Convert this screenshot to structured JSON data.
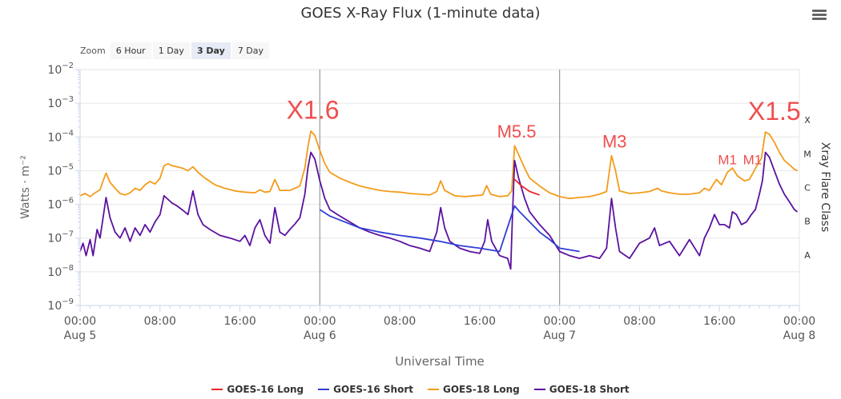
{
  "title": "GOES X-Ray Flux (1-minute data)",
  "menu": {
    "icon": "hamburger-menu-icon"
  },
  "zoom": {
    "label": "Zoom",
    "buttons": [
      {
        "label": "6 Hour",
        "active": false
      },
      {
        "label": "1 Day",
        "active": false
      },
      {
        "label": "3 Day",
        "active": true
      },
      {
        "label": "7 Day",
        "active": false
      }
    ]
  },
  "chart_data": {
    "type": "line",
    "title": "GOES X-Ray Flux (1-minute data)",
    "xlabel": "Universal Time",
    "ylabel": "Watts · m⁻²",
    "ylabel_right": "Xray Flare Class",
    "y_scale": "log",
    "ylim": [
      1e-09,
      0.01
    ],
    "xlim_hours": [
      0,
      72
    ],
    "x_ticks": [
      {
        "h": 0,
        "label": "00:00",
        "sub": "Aug 5"
      },
      {
        "h": 8,
        "label": "08:00",
        "sub": ""
      },
      {
        "h": 16,
        "label": "16:00",
        "sub": ""
      },
      {
        "h": 24,
        "label": "00:00",
        "sub": "Aug 6"
      },
      {
        "h": 32,
        "label": "08:00",
        "sub": ""
      },
      {
        "h": 40,
        "label": "16:00",
        "sub": ""
      },
      {
        "h": 48,
        "label": "00:00",
        "sub": "Aug 7"
      },
      {
        "h": 56,
        "label": "08:00",
        "sub": ""
      },
      {
        "h": 64,
        "label": "16:00",
        "sub": ""
      },
      {
        "h": 72,
        "label": "00:00",
        "sub": "Aug 8"
      }
    ],
    "y_ticks": [
      {
        "exp": -9,
        "label": "10",
        "sup": "−9"
      },
      {
        "exp": -8,
        "label": "10",
        "sup": "−8"
      },
      {
        "exp": -7,
        "label": "10",
        "sup": "−7"
      },
      {
        "exp": -6,
        "label": "10",
        "sup": "−6"
      },
      {
        "exp": -5,
        "label": "10",
        "sup": "−5"
      },
      {
        "exp": -4,
        "label": "10",
        "sup": "−4"
      },
      {
        "exp": -3,
        "label": "10",
        "sup": "−3"
      },
      {
        "exp": -2,
        "label": "10",
        "sup": "−2"
      }
    ],
    "flare_classes": [
      {
        "label": "X",
        "exp": -3.5
      },
      {
        "label": "M",
        "exp": -4.5
      },
      {
        "label": "C",
        "exp": -5.5
      },
      {
        "label": "B",
        "exp": -6.5
      },
      {
        "label": "A",
        "exp": -7.5
      }
    ],
    "day_lines_hours": [
      24,
      48
    ],
    "annotations": [
      {
        "text": "X1.6",
        "h": 23.3,
        "flux": 0.00016,
        "size": "large"
      },
      {
        "text": "M5.5",
        "h": 43.7,
        "flux": 5.5e-05,
        "size": "medium"
      },
      {
        "text": "M3",
        "h": 53.5,
        "flux": 2.8e-05,
        "size": "medium"
      },
      {
        "text": "M1",
        "h": 64.8,
        "flux": 1e-05,
        "size": "small"
      },
      {
        "text": "M1",
        "h": 67.3,
        "flux": 1e-05,
        "size": "small"
      },
      {
        "text": "X1.5",
        "h": 69.5,
        "flux": 0.00015,
        "size": "large"
      }
    ],
    "series": [
      {
        "name": "GOES-16 Long",
        "color": "#e8262b",
        "points": [
          [
            43.5,
            5.5e-06
          ],
          [
            44.2,
            3.5e-06
          ],
          [
            45,
            2.4e-06
          ],
          [
            46,
            1.9e-06
          ]
        ]
      },
      {
        "name": "GOES-16 Short",
        "color": "#2f3fd4",
        "points": [
          [
            24,
            7e-07
          ],
          [
            25,
            4.5e-07
          ],
          [
            26.5,
            3e-07
          ],
          [
            28,
            2e-07
          ],
          [
            30,
            1.5e-07
          ],
          [
            32,
            1.2e-07
          ],
          [
            34,
            1e-07
          ],
          [
            36,
            8e-08
          ],
          [
            38,
            6e-08
          ],
          [
            40,
            5e-08
          ],
          [
            42,
            4e-08
          ],
          [
            43.5,
            9e-07
          ],
          [
            44,
            6e-07
          ],
          [
            45,
            3e-07
          ],
          [
            46,
            1.5e-07
          ],
          [
            47,
            9e-08
          ],
          [
            48,
            5e-08
          ],
          [
            50,
            4e-08
          ]
        ]
      },
      {
        "name": "GOES-18 Long",
        "color": "#f39c1b",
        "points": [
          [
            0,
            1.8e-06
          ],
          [
            0.5,
            2.1e-06
          ],
          [
            1,
            1.7e-06
          ],
          [
            1.5,
            2.2e-06
          ],
          [
            2,
            2.7e-06
          ],
          [
            2.3,
            5e-06
          ],
          [
            2.6,
            8.5e-06
          ],
          [
            3,
            4.5e-06
          ],
          [
            3.5,
            3e-06
          ],
          [
            4,
            2.1e-06
          ],
          [
            4.5,
            1.9e-06
          ],
          [
            5,
            2.2e-06
          ],
          [
            5.5,
            3e-06
          ],
          [
            6,
            2.6e-06
          ],
          [
            6.5,
            3.8e-06
          ],
          [
            7,
            4.8e-06
          ],
          [
            7.5,
            4e-06
          ],
          [
            8,
            6e-06
          ],
          [
            8.4,
            1.4e-05
          ],
          [
            8.8,
            1.6e-05
          ],
          [
            9.2,
            1.4e-05
          ],
          [
            9.7,
            1.3e-05
          ],
          [
            10.2,
            1.2e-05
          ],
          [
            10.8,
            1e-05
          ],
          [
            11.3,
            1.3e-05
          ],
          [
            11.8,
            9e-06
          ],
          [
            12.5,
            6e-06
          ],
          [
            13.5,
            3.8e-06
          ],
          [
            14.5,
            3e-06
          ],
          [
            15.5,
            2.5e-06
          ],
          [
            16.5,
            2.3e-06
          ],
          [
            17.5,
            2.2e-06
          ],
          [
            18,
            2.7e-06
          ],
          [
            18.5,
            2.3e-06
          ],
          [
            19,
            2.4e-06
          ],
          [
            19.5,
            5.5e-06
          ],
          [
            20,
            2.6e-06
          ],
          [
            21,
            2.6e-06
          ],
          [
            21.5,
            3e-06
          ],
          [
            22,
            3.5e-06
          ],
          [
            22.5,
            1.2e-05
          ],
          [
            22.8,
            5e-05
          ],
          [
            23.1,
            0.00015
          ],
          [
            23.5,
            0.00011
          ],
          [
            24,
            4e-05
          ],
          [
            24.5,
            1.6e-05
          ],
          [
            25,
            9e-06
          ],
          [
            26,
            6e-06
          ],
          [
            27,
            4.5e-06
          ],
          [
            28,
            3.5e-06
          ],
          [
            29,
            3e-06
          ],
          [
            30,
            2.6e-06
          ],
          [
            31,
            2.4e-06
          ],
          [
            32,
            2.3e-06
          ],
          [
            33,
            2.1e-06
          ],
          [
            34,
            2e-06
          ],
          [
            35,
            1.9e-06
          ],
          [
            35.7,
            2.4e-06
          ],
          [
            36.1,
            5e-06
          ],
          [
            36.5,
            2.6e-06
          ],
          [
            37.5,
            1.8e-06
          ],
          [
            38.5,
            1.7e-06
          ],
          [
            39.5,
            1.8e-06
          ],
          [
            40.3,
            1.9e-06
          ],
          [
            40.7,
            3.6e-06
          ],
          [
            41.1,
            2e-06
          ],
          [
            42,
            1.7e-06
          ],
          [
            42.8,
            1.8e-06
          ],
          [
            43.2,
            2.5e-06
          ],
          [
            43.5,
            5.5e-05
          ],
          [
            43.9,
            3e-05
          ],
          [
            44.5,
            1.2e-05
          ],
          [
            45,
            6e-06
          ],
          [
            46,
            3.5e-06
          ],
          [
            47,
            2.2e-06
          ],
          [
            48,
            1.7e-06
          ],
          [
            49,
            1.5e-06
          ],
          [
            50,
            1.6e-06
          ],
          [
            51,
            1.7e-06
          ],
          [
            52,
            2e-06
          ],
          [
            52.7,
            2.4e-06
          ],
          [
            53.2,
            2.8e-05
          ],
          [
            53.6,
            1e-05
          ],
          [
            54,
            2.5e-06
          ],
          [
            55,
            2.1e-06
          ],
          [
            56,
            2.2e-06
          ],
          [
            57,
            2.4e-06
          ],
          [
            57.8,
            3e-06
          ],
          [
            58.2,
            2.5e-06
          ],
          [
            59,
            2.2e-06
          ],
          [
            60,
            2e-06
          ],
          [
            61,
            2e-06
          ],
          [
            62,
            2.2e-06
          ],
          [
            62.5,
            3e-06
          ],
          [
            63,
            2.6e-06
          ],
          [
            63.7,
            5.5e-06
          ],
          [
            64.2,
            3.8e-06
          ],
          [
            64.8,
            9e-06
          ],
          [
            65.3,
            1.2e-05
          ],
          [
            65.8,
            7e-06
          ],
          [
            66.5,
            5e-06
          ],
          [
            67,
            5.5e-06
          ],
          [
            67.4,
            9e-06
          ],
          [
            67.8,
            1.5e-05
          ],
          [
            68.2,
            2.3e-05
          ],
          [
            68.6,
            0.00014
          ],
          [
            69,
            0.00012
          ],
          [
            69.5,
            7e-05
          ],
          [
            70,
            3.5e-05
          ],
          [
            70.5,
            2e-05
          ],
          [
            71,
            1.5e-05
          ],
          [
            71.5,
            1.1e-05
          ],
          [
            71.8,
            1e-05
          ]
        ]
      },
      {
        "name": "GOES-18 Short",
        "color": "#5b12a0",
        "points": [
          [
            0,
            4e-08
          ],
          [
            0.3,
            7e-08
          ],
          [
            0.6,
            3e-08
          ],
          [
            1,
            9e-08
          ],
          [
            1.3,
            3e-08
          ],
          [
            1.7,
            1.8e-07
          ],
          [
            2,
            1e-07
          ],
          [
            2.3,
            4e-07
          ],
          [
            2.6,
            1.6e-06
          ],
          [
            3,
            4e-07
          ],
          [
            3.5,
            1.5e-07
          ],
          [
            4,
            1e-07
          ],
          [
            4.5,
            2e-07
          ],
          [
            5,
            8e-08
          ],
          [
            5.5,
            2e-07
          ],
          [
            6,
            1.2e-07
          ],
          [
            6.5,
            2.5e-07
          ],
          [
            7,
            1.5e-07
          ],
          [
            7.5,
            3e-07
          ],
          [
            8,
            5e-07
          ],
          [
            8.4,
            1.8e-06
          ],
          [
            8.8,
            1.4e-06
          ],
          [
            9.2,
            1.1e-06
          ],
          [
            9.7,
            9e-07
          ],
          [
            10.2,
            7e-07
          ],
          [
            10.8,
            5e-07
          ],
          [
            11.3,
            2.5e-06
          ],
          [
            11.8,
            5e-07
          ],
          [
            12.3,
            2.5e-07
          ],
          [
            13,
            1.8e-07
          ],
          [
            14,
            1.2e-07
          ],
          [
            15,
            1e-07
          ],
          [
            16,
            8e-08
          ],
          [
            16.5,
            1.2e-07
          ],
          [
            17,
            6e-08
          ],
          [
            17.5,
            2e-07
          ],
          [
            18,
            3.5e-07
          ],
          [
            18.5,
            1.2e-07
          ],
          [
            19,
            7e-08
          ],
          [
            19.5,
            8e-07
          ],
          [
            20,
            1.5e-07
          ],
          [
            20.5,
            1.2e-07
          ],
          [
            21,
            1.8e-07
          ],
          [
            21.5,
            2.6e-07
          ],
          [
            22,
            4e-07
          ],
          [
            22.5,
            2e-06
          ],
          [
            22.8,
            1.2e-05
          ],
          [
            23.1,
            3.5e-05
          ],
          [
            23.5,
            2.2e-05
          ],
          [
            24,
            5e-06
          ],
          [
            24.5,
            1.5e-06
          ],
          [
            25,
            7e-07
          ],
          [
            26,
            4.5e-07
          ],
          [
            27,
            3e-07
          ],
          [
            28,
            2e-07
          ],
          [
            29,
            1.5e-07
          ],
          [
            30,
            1.2e-07
          ],
          [
            31,
            1e-07
          ],
          [
            32,
            8e-08
          ],
          [
            33,
            6e-08
          ],
          [
            34,
            5e-08
          ],
          [
            35,
            4e-08
          ],
          [
            35.7,
            1.5e-07
          ],
          [
            36.1,
            8e-07
          ],
          [
            36.5,
            2e-07
          ],
          [
            37,
            8e-08
          ],
          [
            38,
            5e-08
          ],
          [
            39,
            4e-08
          ],
          [
            40,
            3.5e-08
          ],
          [
            40.5,
            8e-08
          ],
          [
            40.8,
            3.5e-07
          ],
          [
            41.2,
            8e-08
          ],
          [
            42,
            3e-08
          ],
          [
            42.8,
            2.5e-08
          ],
          [
            43.1,
            1.2e-08
          ],
          [
            43.3,
            6e-07
          ],
          [
            43.5,
            2e-05
          ],
          [
            43.9,
            6e-06
          ],
          [
            44.5,
            1.5e-06
          ],
          [
            45,
            6e-07
          ],
          [
            46,
            2.5e-07
          ],
          [
            47,
            1.2e-07
          ],
          [
            48,
            4e-08
          ],
          [
            49,
            3e-08
          ],
          [
            50,
            2.5e-08
          ],
          [
            51,
            3e-08
          ],
          [
            52,
            2.5e-08
          ],
          [
            52.7,
            5e-08
          ],
          [
            53.2,
            1.5e-06
          ],
          [
            53.6,
            2e-07
          ],
          [
            54,
            4e-08
          ],
          [
            55,
            2.5e-08
          ],
          [
            56,
            7e-08
          ],
          [
            57,
            1e-07
          ],
          [
            57.5,
            2e-07
          ],
          [
            58,
            6e-08
          ],
          [
            59,
            8e-08
          ],
          [
            60,
            3e-08
          ],
          [
            61,
            9e-08
          ],
          [
            62,
            3e-08
          ],
          [
            62.5,
            1e-07
          ],
          [
            63,
            2e-07
          ],
          [
            63.5,
            5e-07
          ],
          [
            64,
            2.5e-07
          ],
          [
            64.5,
            2.5e-07
          ],
          [
            65,
            2e-07
          ],
          [
            65.3,
            6e-07
          ],
          [
            65.7,
            5e-07
          ],
          [
            66.2,
            2.5e-07
          ],
          [
            66.7,
            3e-07
          ],
          [
            67.2,
            5e-07
          ],
          [
            67.6,
            7e-07
          ],
          [
            68,
            2e-06
          ],
          [
            68.3,
            5e-06
          ],
          [
            68.6,
            3.5e-05
          ],
          [
            69,
            2.5e-05
          ],
          [
            69.5,
            1e-05
          ],
          [
            70,
            4e-06
          ],
          [
            70.5,
            2e-06
          ],
          [
            71,
            1.2e-06
          ],
          [
            71.5,
            7e-07
          ],
          [
            71.8,
            6e-07
          ]
        ]
      }
    ],
    "legend_placement": "bottom-center",
    "grid": true
  }
}
